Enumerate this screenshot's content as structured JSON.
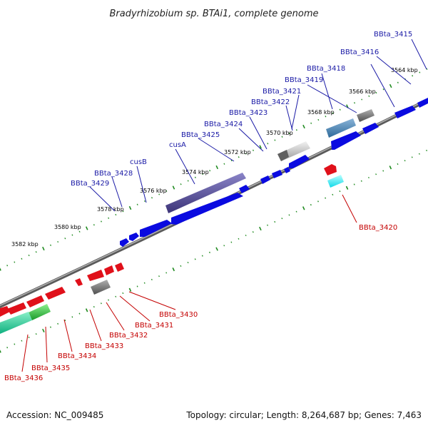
{
  "title": "Bradyrhizobium sp. BTAi1, complete genome",
  "footer": {
    "accession": "Accession: NC_009485",
    "summary": "Topology: circular; Length: 8,264,687 bp; Genes: 7,463"
  },
  "kbp_labels": [
    "3564 kbp",
    "3566 kbp",
    "3568 kbp",
    "3570 kbp",
    "3572 kbp",
    "3574 kbp",
    "3576 kbp",
    "3578 kbp",
    "3580 kbp",
    "3582 kbp"
  ],
  "forward_labels": [
    "BBta_3415",
    "BBta_3416",
    "BBta_3418",
    "BBta_3419",
    "BBta_3421",
    "BBta_3422",
    "BBta_3423",
    "BBta_3424",
    "BBta_3425",
    "cusA",
    "cusB",
    "BBta_3428",
    "BBta_3429"
  ],
  "reverse_labels": [
    "BBta_3420",
    "BBta_3430",
    "BBta_3431",
    "BBta_3432",
    "BBta_3433",
    "BBta_3434",
    "BBta_3435",
    "BBta_3436"
  ],
  "colors": {
    "forward_gene": "#0a0ae0",
    "reverse_gene": "#e0101a",
    "backbone": "#8a8a8a",
    "tick": "#1e8a1e",
    "label_blue": "#1a1aa6",
    "label_red": "#c40000"
  }
}
